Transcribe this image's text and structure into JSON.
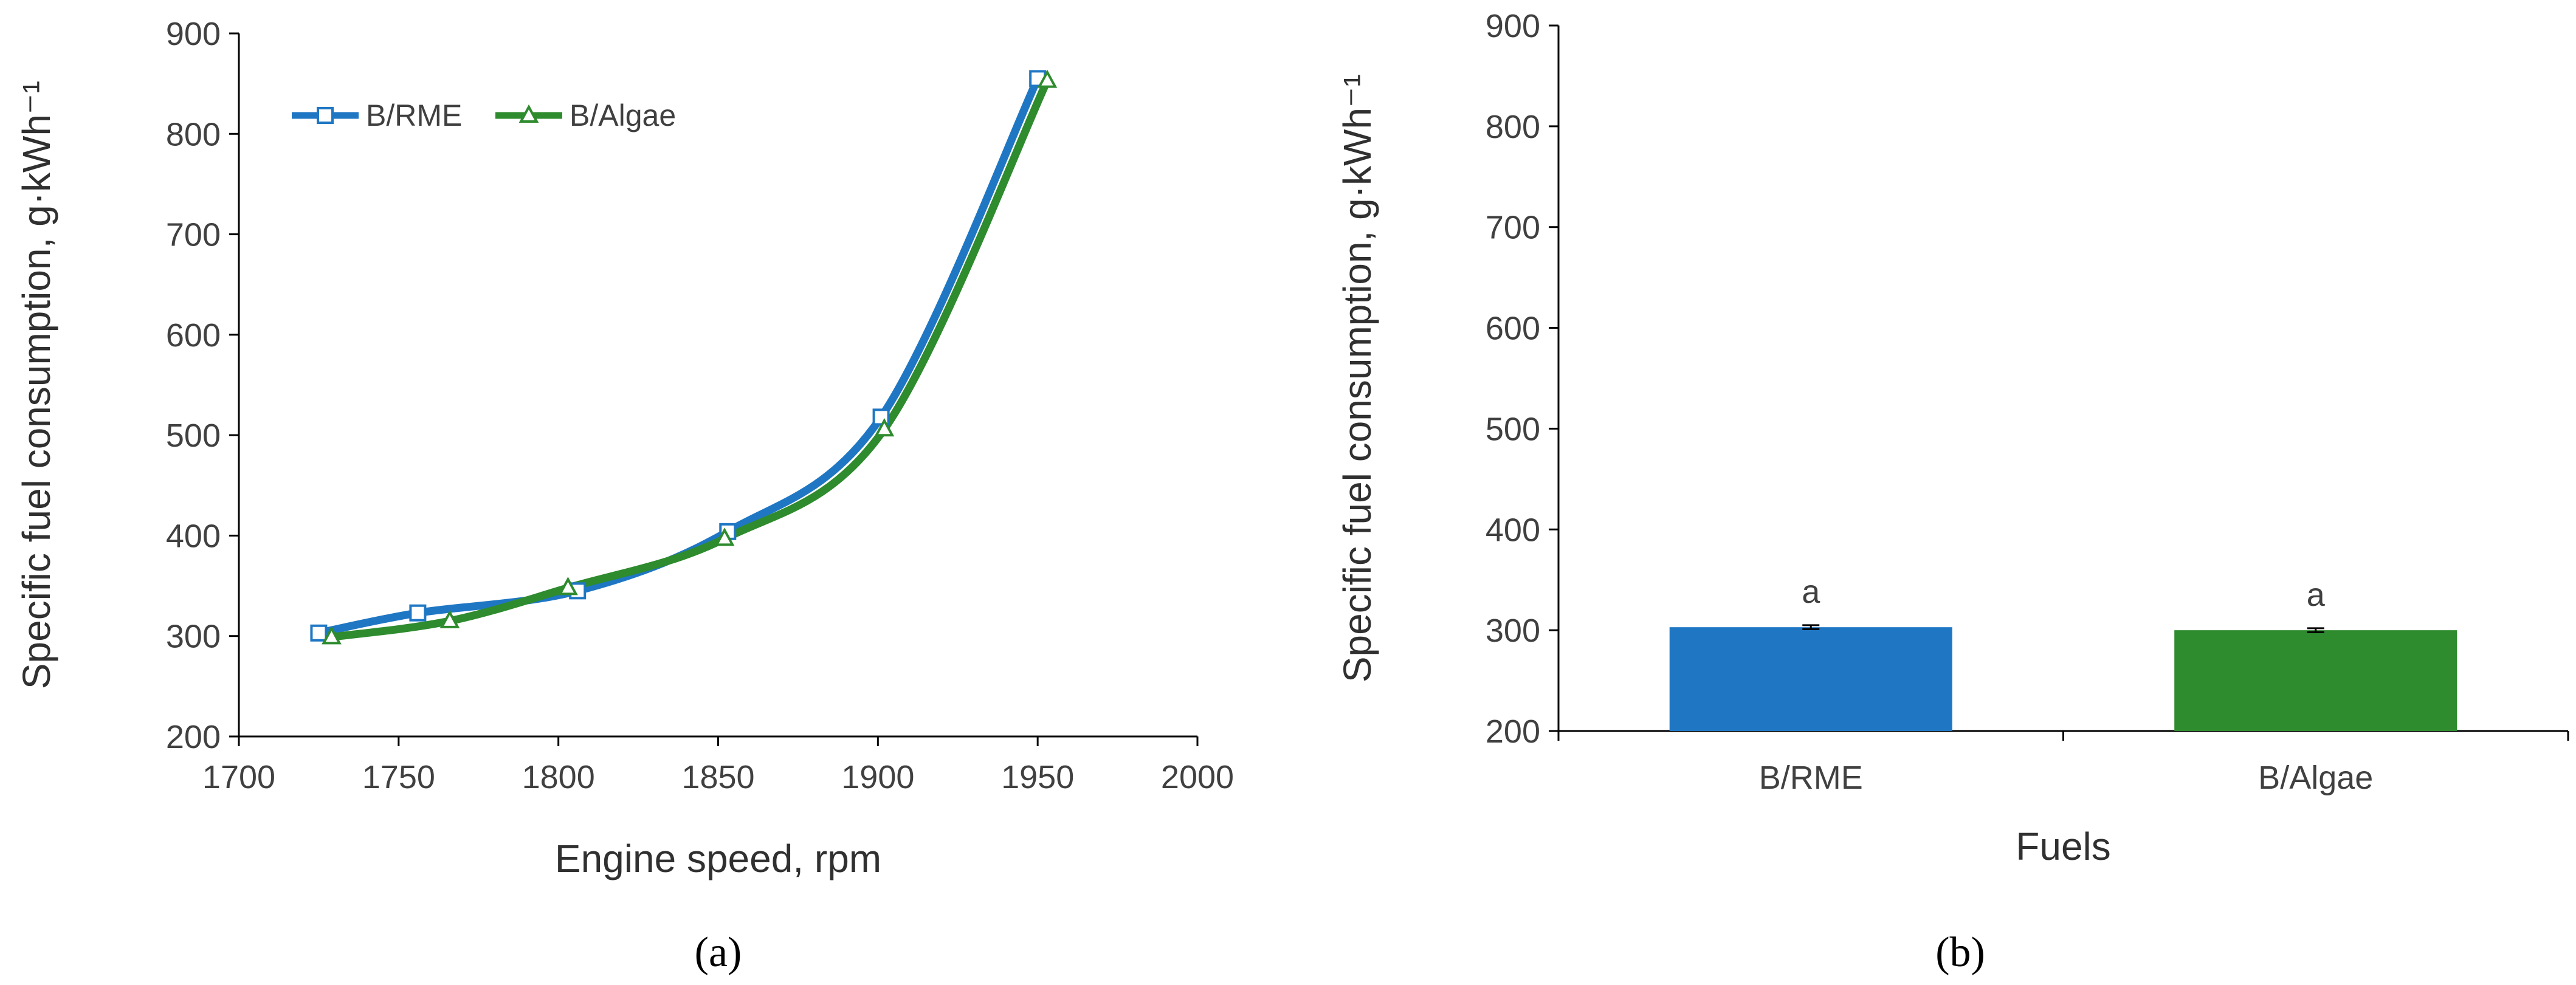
{
  "chart_data": [
    {
      "type": "line",
      "panel_label": "(a)",
      "xlabel": "Engine speed, rpm",
      "ylabel": "Specific fuel consumption, g·kWh⁻¹",
      "xlim": [
        1700,
        2000
      ],
      "ylim": [
        200,
        900
      ],
      "xticks": [
        1700,
        1750,
        1800,
        1850,
        1900,
        1950,
        2000
      ],
      "yticks": [
        200,
        300,
        400,
        500,
        600,
        700,
        800,
        900
      ],
      "grid": false,
      "legend_position": "top-left",
      "series": [
        {
          "name": "B/RME",
          "color": "#1f77c4",
          "marker": "square",
          "x": [
            1725,
            1756,
            1806,
            1853,
            1901,
            1950
          ],
          "y": [
            303,
            323,
            345,
            404,
            518,
            855
          ]
        },
        {
          "name": "B/Algae",
          "color": "#2e8b2e",
          "marker": "triangle",
          "x": [
            1729,
            1766,
            1803,
            1852,
            1902,
            1953
          ],
          "y": [
            299,
            315,
            348,
            397,
            506,
            853
          ]
        }
      ]
    },
    {
      "type": "bar",
      "panel_label": "(b)",
      "xlabel": "Fuels",
      "ylabel": "Specific fuel consumption, g·kWh⁻¹",
      "ylim": [
        200,
        900
      ],
      "yticks": [
        200,
        300,
        400,
        500,
        600,
        700,
        800,
        900
      ],
      "grid": false,
      "categories": [
        "B/RME",
        "B/Algae"
      ],
      "values": [
        303,
        300
      ],
      "errors": [
        2,
        2
      ],
      "colors": [
        "#1f77c4",
        "#2e8b2e"
      ],
      "annotations": [
        "a",
        "a"
      ]
    }
  ]
}
